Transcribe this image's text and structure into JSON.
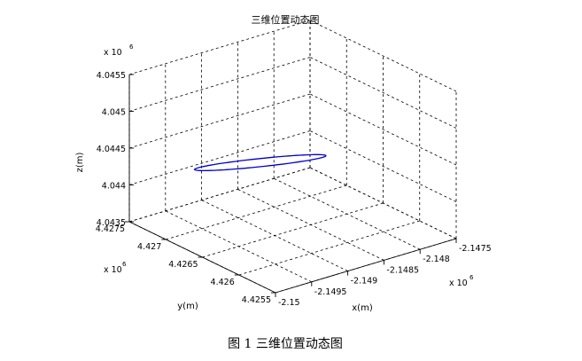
{
  "chart_data": {
    "type": "line",
    "title": "三维位置动态图",
    "xlabel": "x(m)",
    "ylabel": "y(m)",
    "zlabel": "z(m)",
    "x_exponent": "x 10",
    "y_exponent": "x 10",
    "z_exponent": "x 10",
    "exponent_power": "6",
    "xlim": [
      -2.15,
      -2.1475
    ],
    "ylim": [
      4.4255,
      4.4275
    ],
    "zlim": [
      4.0435,
      4.0455
    ],
    "x_ticks": [
      "-2.15",
      "-2.1495",
      "-2.149",
      "-2.1485",
      "-2.148",
      "-2.1475"
    ],
    "y_ticks": [
      "4.4255",
      "4.426",
      "4.4265",
      "4.427",
      "4.4275"
    ],
    "z_ticks": [
      "4.0435",
      "4.044",
      "4.0445",
      "4.045",
      "4.0455"
    ],
    "grid": true,
    "series": [
      {
        "color": "#0000cc",
        "trajectory": "closed-loop",
        "start": {
          "x": -2.1493,
          "y": 4.4273,
          "z": 4.0441
        },
        "end": {
          "x": -2.1491,
          "y": 4.4257,
          "z": 4.045
        }
      }
    ]
  },
  "caption": "图 1  三维位置动态图"
}
